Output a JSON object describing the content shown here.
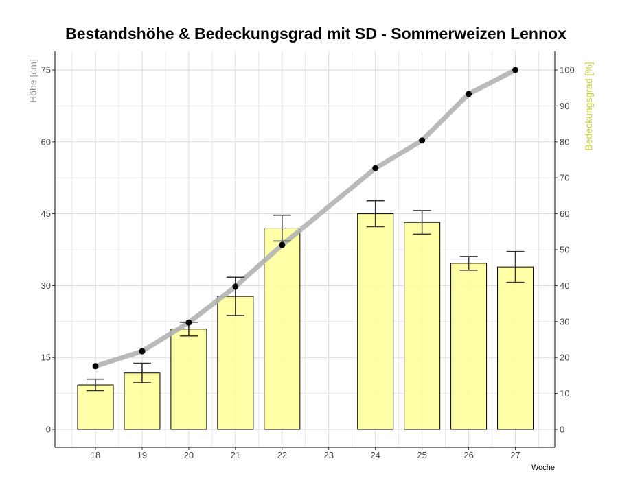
{
  "chart_data": {
    "type": "bar",
    "title": "Bestandshöhe & Bedeckungsgrad mit SD - Sommerweizen Lennox",
    "xlabel": "Woche",
    "ylabel_left": "Höhe [cm]",
    "ylabel_right": "Bedeckungsgrad [%]",
    "categories": [
      "18",
      "19",
      "20",
      "21",
      "22",
      "23",
      "24",
      "25",
      "26",
      "27"
    ],
    "ylim_left": [
      0,
      75
    ],
    "yticks_left": [
      0,
      15,
      30,
      45,
      60,
      75
    ],
    "ylim_right": [
      0,
      100
    ],
    "yticks_right": [
      0,
      10,
      20,
      30,
      40,
      50,
      60,
      70,
      80,
      90,
      100
    ],
    "grid": true,
    "colors": {
      "bar_fill": "#ffff99",
      "bar_stroke": "#000000",
      "line": "#b3b3b3",
      "point": "#000000",
      "errorbar": "#333333",
      "left_axis_title": "#8c8c8c",
      "right_axis_title": "#cccc33",
      "grid": "#d9d9d9"
    },
    "series": [
      {
        "type": "bar",
        "axis": "right",
        "x": [
          "18",
          "19",
          "20",
          "21",
          "22",
          "24",
          "25",
          "26",
          "27"
        ],
        "values": [
          12.4,
          15.7,
          27.9,
          37.0,
          56.0,
          60.0,
          57.6,
          46.2,
          45.2
        ],
        "sd": [
          1.6,
          2.7,
          1.9,
          5.3,
          3.6,
          3.6,
          3.3,
          1.9,
          4.3
        ]
      },
      {
        "type": "line",
        "axis": "left",
        "x": [
          "18",
          "19",
          "20",
          "21",
          "22",
          "24",
          "25",
          "26",
          "27"
        ],
        "values": [
          13.2,
          16.3,
          22.3,
          29.8,
          38.5,
          54.5,
          60.3,
          70.0,
          75.0
        ]
      }
    ]
  }
}
